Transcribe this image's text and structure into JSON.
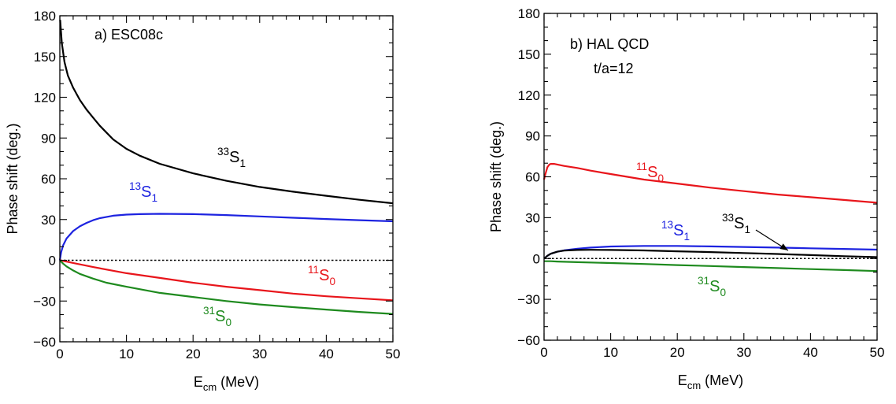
{
  "colors": {
    "black": "#000000",
    "red": "#e8151b",
    "blue": "#1d23e0",
    "green": "#1e8a1e",
    "zero_line": "#000000"
  },
  "chart_data": [
    {
      "type": "line",
      "panel_label": "a) ESC08c",
      "note": "",
      "xlabel": {
        "main": "E",
        "sub": "cm",
        "unit": " (MeV)"
      },
      "ylabel": "Phase shift (deg.)",
      "xlim": [
        0,
        50
      ],
      "ylim": [
        -60,
        180
      ],
      "xticks": [
        0,
        10,
        20,
        30,
        40,
        50
      ],
      "yticks": [
        -60,
        -30,
        0,
        30,
        60,
        90,
        120,
        150,
        180
      ],
      "xtick_labels": [
        "0",
        "10",
        "20",
        "30",
        "40",
        "50"
      ],
      "ytick_labels": [
        "−60",
        "−30",
        "0",
        "30",
        "60",
        "90",
        "120",
        "150",
        "180"
      ],
      "zero_line": true,
      "series": [
        {
          "name": "33S1",
          "label": {
            "sup": "33",
            "main": "S",
            "sub": "1"
          },
          "color": "#000000",
          "x": [
            0.05,
            0.3,
            0.7,
            1.2,
            2,
            3,
            4,
            5,
            6,
            7,
            8,
            10,
            12,
            15,
            20,
            25,
            30,
            35,
            40,
            45,
            50
          ],
          "y": [
            177,
            160,
            146,
            136,
            127,
            118,
            111,
            105,
            99,
            94,
            89,
            82,
            77,
            71,
            64,
            58.5,
            54,
            50.5,
            47.5,
            44.5,
            42
          ]
        },
        {
          "name": "13S1",
          "label": {
            "sup": "13",
            "main": "S",
            "sub": "1"
          },
          "color": "#1d23e0",
          "x": [
            0,
            0.2,
            0.5,
            1,
            2,
            3,
            4,
            5,
            6,
            8,
            10,
            12,
            15,
            20,
            25,
            30,
            35,
            40,
            45,
            50
          ],
          "y": [
            0,
            6,
            11,
            16,
            21.5,
            25,
            27.5,
            29.5,
            31,
            32.8,
            33.6,
            34,
            34.2,
            34,
            33.3,
            32.3,
            31.3,
            30.4,
            29.5,
            28.7
          ]
        },
        {
          "name": "11S0",
          "label": {
            "sup": "11",
            "main": "S",
            "sub": "0"
          },
          "color": "#e8151b",
          "x": [
            0,
            1,
            2,
            5,
            10,
            15,
            20,
            25,
            30,
            35,
            40,
            45,
            50
          ],
          "y": [
            0,
            -1,
            -2,
            -5,
            -9.5,
            -13,
            -16.5,
            -19.5,
            -22,
            -24.5,
            -26.5,
            -28,
            -29.5
          ]
        },
        {
          "name": "31S0",
          "label": {
            "sup": "31",
            "main": "S",
            "sub": "0"
          },
          "color": "#1e8a1e",
          "x": [
            0,
            0.5,
            1,
            2,
            3,
            5,
            7,
            10,
            15,
            20,
            25,
            30,
            35,
            40,
            45,
            50
          ],
          "y": [
            0,
            -2.5,
            -4.5,
            -7.5,
            -10,
            -13.5,
            -16.5,
            -19.5,
            -24,
            -27,
            -30,
            -32.5,
            -34.5,
            -36.3,
            -38,
            -39.5
          ]
        }
      ]
    },
    {
      "type": "line",
      "panel_label": "b) HAL QCD",
      "note": "t/a=12",
      "xlabel": {
        "main": "E",
        "sub": "cm",
        "unit": " (MeV)"
      },
      "ylabel": "Phase shift (deg.)",
      "xlim": [
        0,
        50
      ],
      "ylim": [
        -60,
        180
      ],
      "xticks": [
        0,
        10,
        20,
        30,
        40,
        50
      ],
      "yticks": [
        -60,
        -30,
        0,
        30,
        60,
        90,
        120,
        150,
        180
      ],
      "xtick_labels": [
        "0",
        "10",
        "20",
        "30",
        "40",
        "50"
      ],
      "ytick_labels": [
        "−60",
        "−30",
        "0",
        "30",
        "60",
        "90",
        "120",
        "150",
        "180"
      ],
      "zero_line": true,
      "series": [
        {
          "name": "11S0",
          "label": {
            "sup": "11",
            "main": "S",
            "sub": "0"
          },
          "color": "#e8151b",
          "x": [
            0,
            0.2,
            0.5,
            0.8,
            1,
            1.5,
            2,
            3,
            5,
            7,
            10,
            15,
            20,
            25,
            30,
            35,
            40,
            45,
            50
          ],
          "y": [
            58,
            62,
            67,
            69,
            69.5,
            69.5,
            69,
            68,
            66.5,
            64.5,
            62,
            58,
            55,
            52,
            49.5,
            47,
            45,
            43,
            41
          ]
        },
        {
          "name": "13S1",
          "label": {
            "sup": "13",
            "main": "S",
            "sub": "1"
          },
          "color": "#1d23e0",
          "x": [
            0,
            0.5,
            1,
            2,
            3,
            5,
            7,
            10,
            15,
            20,
            25,
            30,
            35,
            40,
            45,
            50
          ],
          "y": [
            0,
            2,
            3.5,
            5,
            6,
            7.2,
            8,
            8.8,
            9.2,
            9.2,
            8.9,
            8.5,
            8,
            7.5,
            7,
            6.5
          ]
        },
        {
          "name": "33S1",
          "label": {
            "sup": "33",
            "main": "S",
            "sub": "1"
          },
          "color": "#000000",
          "x": [
            0,
            0.5,
            1,
            2,
            3,
            5,
            7,
            10,
            15,
            20,
            25,
            30,
            35,
            40,
            45,
            50
          ],
          "y": [
            0,
            2,
            3.5,
            5,
            5.8,
            6.3,
            6.4,
            6.3,
            5.9,
            5.3,
            4.7,
            4,
            3.3,
            2.5,
            1.7,
            1
          ]
        },
        {
          "name": "31S0",
          "label": {
            "sup": "31",
            "main": "S",
            "sub": "0"
          },
          "color": "#1e8a1e",
          "x": [
            0,
            1,
            2,
            5,
            10,
            15,
            20,
            25,
            30,
            35,
            40,
            45,
            50
          ],
          "y": [
            -2,
            -2,
            -2.2,
            -2.7,
            -3.3,
            -4,
            -4.8,
            -5.5,
            -6.3,
            -7,
            -7.8,
            -8.5,
            -9.2
          ]
        }
      ]
    }
  ]
}
